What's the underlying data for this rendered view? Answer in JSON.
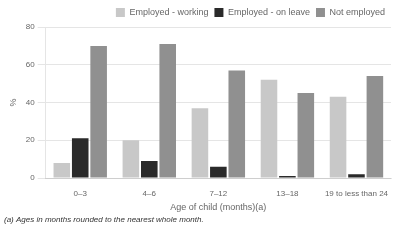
{
  "chart_data": {
    "type": "bar",
    "categories": [
      "0–3",
      "4–6",
      "7–12",
      "13–18",
      "19 to less than 24"
    ],
    "series": [
      {
        "name": "Employed - working",
        "color": "#c8c8c8",
        "values": [
          8,
          20,
          37,
          52,
          43
        ]
      },
      {
        "name": "Employed - on leave",
        "color": "#2a2a2a",
        "values": [
          21,
          9,
          6,
          1,
          2
        ]
      },
      {
        "name": "Not employed",
        "color": "#909090",
        "values": [
          70,
          71,
          57,
          45,
          54
        ]
      }
    ],
    "xlabel": "Age of child (months)(a)",
    "ylabel": "%",
    "footnote": "(a) Ages in months rounded to the nearest whole month.",
    "ylim": [
      0,
      80
    ],
    "yticks": [
      0,
      20,
      40,
      60,
      80
    ],
    "grid": true,
    "legend": "upper right"
  }
}
